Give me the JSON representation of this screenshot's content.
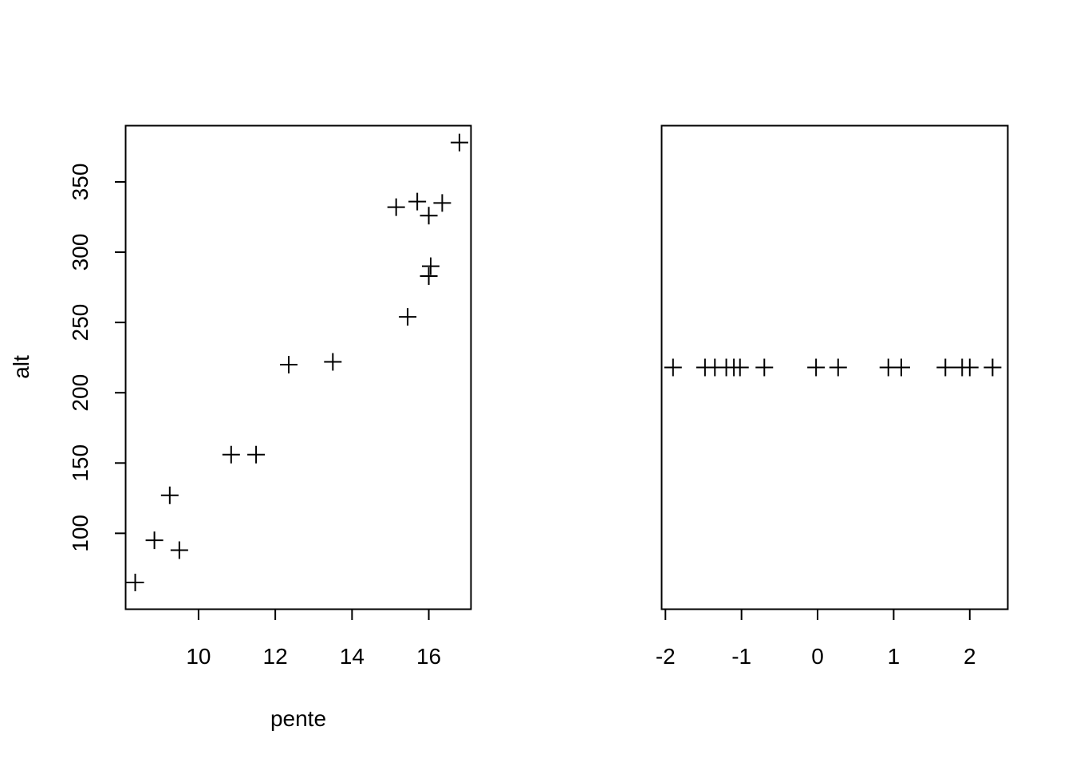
{
  "chart_data": [
    {
      "type": "scatter",
      "title": "",
      "xlabel": "pente",
      "ylabel": "alt",
      "marker": "plus",
      "x_ticks": [
        10,
        12,
        14,
        16
      ],
      "y_ticks": [
        100,
        150,
        200,
        250,
        300,
        350
      ],
      "xlim": [
        8.1,
        17.1
      ],
      "ylim": [
        46,
        390
      ],
      "points": [
        {
          "x": 8.35,
          "y": 65
        },
        {
          "x": 8.85,
          "y": 95
        },
        {
          "x": 9.25,
          "y": 127
        },
        {
          "x": 9.5,
          "y": 88
        },
        {
          "x": 10.85,
          "y": 156
        },
        {
          "x": 11.5,
          "y": 156
        },
        {
          "x": 12.35,
          "y": 220
        },
        {
          "x": 13.5,
          "y": 222
        },
        {
          "x": 15.15,
          "y": 332
        },
        {
          "x": 15.45,
          "y": 254
        },
        {
          "x": 15.7,
          "y": 336
        },
        {
          "x": 16.0,
          "y": 326
        },
        {
          "x": 16.05,
          "y": 290
        },
        {
          "x": 16.0,
          "y": 283
        },
        {
          "x": 16.35,
          "y": 335
        },
        {
          "x": 16.8,
          "y": 378
        }
      ]
    },
    {
      "type": "scatter",
      "title": "",
      "xlabel": "",
      "ylabel": "",
      "marker": "plus",
      "x_ticks": [
        -2,
        -1,
        0,
        1,
        2
      ],
      "xlim": [
        -2.05,
        2.5
      ],
      "ylim": [
        0,
        1
      ],
      "points": [
        {
          "x": -1.9,
          "y": 0.5
        },
        {
          "x": -1.48,
          "y": 0.5
        },
        {
          "x": -1.35,
          "y": 0.5
        },
        {
          "x": -1.2,
          "y": 0.5
        },
        {
          "x": -1.1,
          "y": 0.5
        },
        {
          "x": -1.02,
          "y": 0.5
        },
        {
          "x": -0.7,
          "y": 0.5
        },
        {
          "x": -0.02,
          "y": 0.5
        },
        {
          "x": 0.27,
          "y": 0.5
        },
        {
          "x": 0.93,
          "y": 0.5
        },
        {
          "x": 1.1,
          "y": 0.5
        },
        {
          "x": 1.68,
          "y": 0.5
        },
        {
          "x": 1.9,
          "y": 0.5
        },
        {
          "x": 2.0,
          "y": 0.5
        },
        {
          "x": 2.3,
          "y": 0.5
        }
      ]
    }
  ]
}
